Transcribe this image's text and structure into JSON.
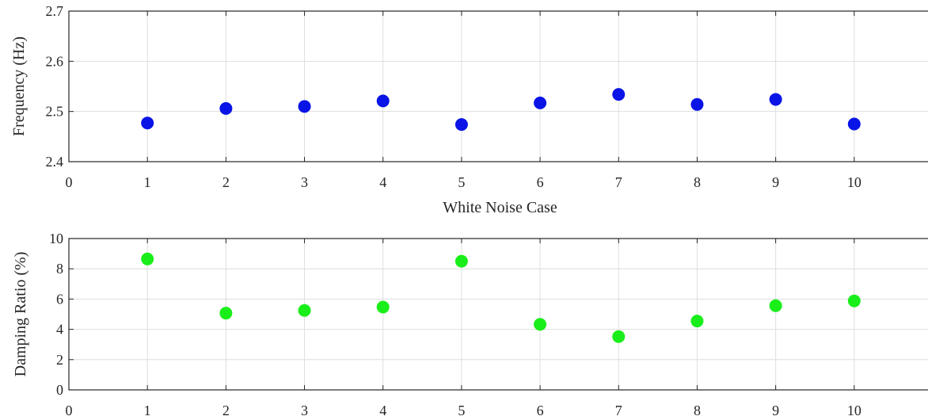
{
  "chart_data": [
    {
      "type": "scatter",
      "xlabel": "White Noise Case",
      "ylabel": "Frequency (Hz)",
      "xlim": [
        0,
        11
      ],
      "ylim": [
        2.4,
        2.7
      ],
      "xticks": [
        "0",
        "1",
        "2",
        "3",
        "4",
        "5",
        "6",
        "7",
        "8",
        "9",
        "10"
      ],
      "yticks": [
        "2.4",
        "2.5",
        "2.6",
        "2.7"
      ],
      "grid": true,
      "series": [
        {
          "color": "#0a14e6",
          "x": [
            1,
            2,
            3,
            4,
            5,
            6,
            7,
            8,
            9,
            10
          ],
          "y": [
            2.477,
            2.506,
            2.51,
            2.521,
            2.474,
            2.517,
            2.534,
            2.514,
            2.524,
            2.475
          ]
        }
      ]
    },
    {
      "type": "scatter",
      "xlabel": "",
      "ylabel": "Damping Ratio (%)",
      "xlim": [
        0,
        11
      ],
      "ylim": [
        0,
        10
      ],
      "xticks": [
        "0",
        "1",
        "2",
        "3",
        "4",
        "5",
        "6",
        "7",
        "8",
        "9",
        "10"
      ],
      "yticks": [
        "0",
        "2",
        "4",
        "6",
        "8",
        "10"
      ],
      "grid": true,
      "series": [
        {
          "color": "#1aee1a",
          "x": [
            1,
            2,
            3,
            4,
            5,
            6,
            7,
            8,
            9,
            10
          ],
          "y": [
            8.65,
            5.07,
            5.25,
            5.47,
            8.5,
            4.33,
            3.52,
            4.55,
            5.56,
            5.88
          ]
        }
      ]
    }
  ]
}
